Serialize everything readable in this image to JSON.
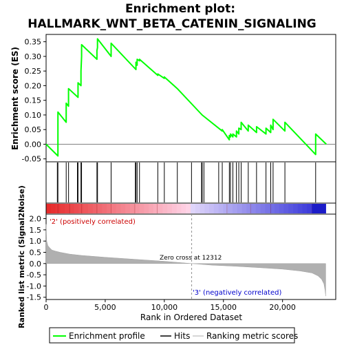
{
  "chart_data": {
    "type": "line",
    "title_line1": "Enrichment plot:",
    "title_line2": "HALLMARK_WNT_BETA_CATENIN_SIGNALING",
    "es_panel": {
      "ylabel": "Enrichment score (ES)",
      "ylim": [
        -0.06,
        0.375
      ],
      "yticks": [
        "-0.05",
        "0.00",
        "0.05",
        "0.10",
        "0.15",
        "0.20",
        "0.25",
        "0.30",
        "0.35"
      ],
      "ytick_values": [
        -0.05,
        0.0,
        0.05,
        0.1,
        0.15,
        0.2,
        0.25,
        0.3,
        0.35
      ],
      "line_color": "#00ff00",
      "x": [
        0,
        1000,
        1000,
        1700,
        1700,
        1900,
        1900,
        2700,
        2700,
        2950,
        2950,
        3000,
        3000,
        4300,
        4300,
        4350,
        4350,
        5500,
        5500,
        7600,
        7600,
        7700,
        7700,
        7900,
        7900,
        9450,
        9450,
        10000,
        10000,
        11100,
        11100,
        13200,
        13200,
        14900,
        14900,
        15500,
        15500,
        15600,
        15600,
        15800,
        15800,
        16100,
        16100,
        16300,
        16300,
        16500,
        16500,
        17100,
        17100,
        17800,
        17800,
        18600,
        18600,
        19000,
        19000,
        19200,
        19200,
        20200,
        20200,
        22800,
        22800,
        23700
      ],
      "values": [
        0.0,
        -0.04,
        0.11,
        0.075,
        0.14,
        0.13,
        0.19,
        0.16,
        0.21,
        0.2,
        0.25,
        0.3,
        0.34,
        0.29,
        0.32,
        0.33,
        0.36,
        0.3,
        0.345,
        0.255,
        0.28,
        0.27,
        0.29,
        0.285,
        0.29,
        0.235,
        0.24,
        0.225,
        0.23,
        0.19,
        0.19,
        0.1,
        0.1,
        0.045,
        0.05,
        0.015,
        0.03,
        0.025,
        0.035,
        0.025,
        0.035,
        0.025,
        0.045,
        0.035,
        0.055,
        0.05,
        0.075,
        0.045,
        0.065,
        0.04,
        0.06,
        0.035,
        0.055,
        0.04,
        0.065,
        0.05,
        0.085,
        0.045,
        0.075,
        -0.035,
        0.035,
        0.0
      ]
    },
    "hits": [
      950,
      1000,
      1700,
      1900,
      2650,
      2700,
      2950,
      3000,
      4300,
      4350,
      5500,
      7550,
      7600,
      7700,
      7900,
      9450,
      10000,
      11100,
      12300,
      13150,
      13200,
      13350,
      14600,
      14900,
      15500,
      15600,
      15800,
      16100,
      16300,
      16500,
      17100,
      17800,
      18600,
      19000,
      19200,
      20200,
      22800
    ],
    "bar_labels": {
      "positive": "'2' (positively correlated)",
      "negative": "'3' (negatively correlated)",
      "zero_cross": "Zero cross at 12312"
    },
    "metric_panel": {
      "ylabel": "Ranked list metric (Signal2Noise)",
      "ylim": [
        -1.6,
        2.2
      ],
      "yticks": [
        "-1.5",
        "-1.0",
        "-0.5",
        "0.0",
        "0.5",
        "1.0",
        "1.5",
        "2.0"
      ],
      "ytick_values": [
        -1.5,
        -1.0,
        -0.5,
        0.0,
        0.5,
        1.0,
        1.5,
        2.0
      ],
      "fill_color": "#b0b0b0",
      "x": [
        0,
        50,
        150,
        300,
        500,
        800,
        1200,
        2000,
        3000,
        5000,
        8000,
        10000,
        12312,
        14000,
        16000,
        18000,
        20000,
        21500,
        22500,
        23000,
        23300,
        23500,
        23600,
        23650
      ],
      "values": [
        1.75,
        1.0,
        0.8,
        0.7,
        0.6,
        0.55,
        0.5,
        0.42,
        0.36,
        0.28,
        0.17,
        0.1,
        0.0,
        -0.07,
        -0.12,
        -0.18,
        -0.25,
        -0.33,
        -0.42,
        -0.55,
        -0.7,
        -0.9,
        -1.2,
        -1.45
      ],
      "zero_cross_x": 12312
    },
    "xaxis": {
      "label": "Rank in Ordered Dataset",
      "xlim": [
        0,
        24500
      ],
      "ticks": [
        "0",
        "5,000",
        "10,000",
        "15,000",
        "20,000"
      ],
      "tick_values": [
        0,
        5000,
        10000,
        15000,
        20000
      ],
      "n_genes": 23650
    },
    "legend": {
      "items": [
        "Enrichment profile",
        "Hits",
        "Ranking metric scores"
      ],
      "colors": [
        "#00ff00",
        "#000000",
        "#c8c8c8"
      ]
    }
  }
}
